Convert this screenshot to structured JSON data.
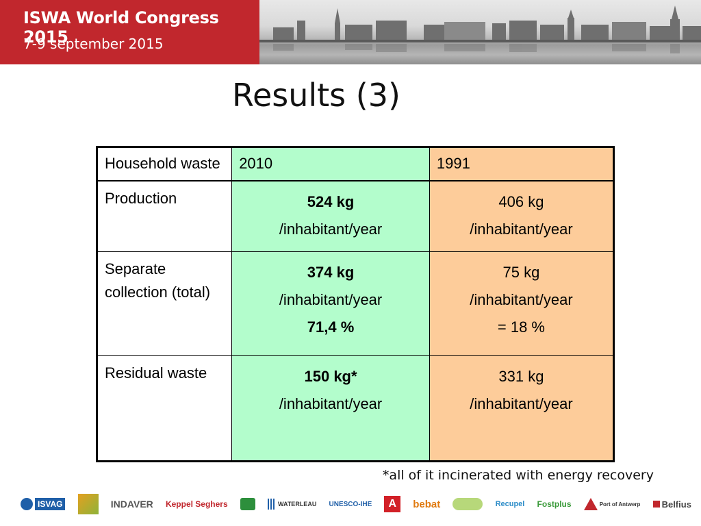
{
  "header": {
    "event_title": "ISWA World Congress 2015",
    "event_dates": "7-9 september 2015",
    "accent_color": "#c1272d"
  },
  "slide": {
    "title": "Results (3)"
  },
  "table": {
    "headers": [
      "Household waste",
      "2010",
      "1991"
    ],
    "colors": {
      "col_2010": "#b3fdcc",
      "col_1991": "#fdcc9a"
    },
    "rows": [
      {
        "label": "Production",
        "v2010": [
          "524 kg",
          "/inhabitant/year"
        ],
        "v1991": [
          "406 kg",
          "/inhabitant/year"
        ]
      },
      {
        "label_lines": [
          "Separate",
          "collection (total)"
        ],
        "v2010": [
          "374 kg",
          "/inhabitant/year",
          "71,4 %"
        ],
        "v1991": [
          "75 kg",
          "/inhabitant/year",
          "= 18 %"
        ]
      },
      {
        "label": "Residual waste",
        "v2010": [
          "150 kg*",
          "/inhabitant/year"
        ],
        "v1991": [
          "331 kg",
          "/inhabitant/year"
        ]
      }
    ]
  },
  "footnote": "*all of it incinerated with energy recovery",
  "sponsors": [
    "ISVAG",
    "INDAVER",
    "Keppel Seghers",
    "OVAM",
    "WATERLEAU",
    "UNESCO-IHE",
    "A",
    "bebat",
    "Recupel",
    "Fostplus",
    "Port of Antwerp",
    "Belfius"
  ]
}
